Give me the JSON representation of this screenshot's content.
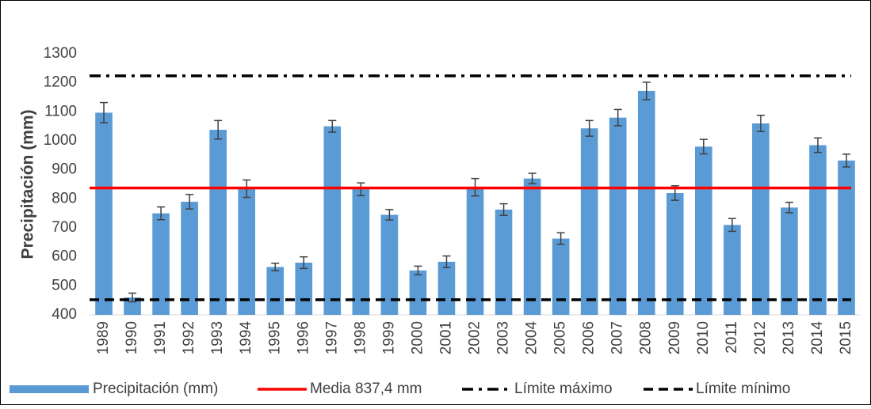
{
  "chart_data": {
    "type": "bar",
    "y_label": "Precipitación (mm)",
    "categories": [
      "1989",
      "1990",
      "1991",
      "1992",
      "1993",
      "1994",
      "1995",
      "1996",
      "1997",
      "1998",
      "1999",
      "2000",
      "2001",
      "2002",
      "2003",
      "2004",
      "2005",
      "2006",
      "2007",
      "2008",
      "2009",
      "2010",
      "2011",
      "2012",
      "2013",
      "2014",
      "2015"
    ],
    "series": [
      {
        "name": "Precipitación (mm)",
        "color": "#5b9bd5",
        "values": [
          1097,
          460,
          750,
          790,
          1038,
          835,
          565,
          580,
          1050,
          833,
          745,
          553,
          583,
          840,
          763,
          870,
          663,
          1043,
          1080,
          1172,
          820,
          980,
          710,
          1060,
          770,
          985,
          932
        ],
        "errors": [
          35,
          15,
          22,
          25,
          32,
          30,
          13,
          20,
          20,
          22,
          18,
          15,
          20,
          30,
          20,
          18,
          20,
          27,
          28,
          30,
          25,
          25,
          22,
          28,
          18,
          25,
          22
        ]
      }
    ],
    "lines": [
      {
        "name": "Media 837,4 mm",
        "color": "#ff0000",
        "value": 837.4,
        "style": "solid"
      },
      {
        "name": "Límite máximo",
        "color": "#000000",
        "value": 1224,
        "style": "dash-dot"
      },
      {
        "name": "Límite mínimo",
        "color": "#000000",
        "value": 452,
        "style": "dash"
      }
    ],
    "ylim": [
      400,
      1300
    ],
    "yticks": [
      400,
      500,
      600,
      700,
      800,
      900,
      1000,
      1100,
      1200,
      1300
    ],
    "grid": false
  }
}
